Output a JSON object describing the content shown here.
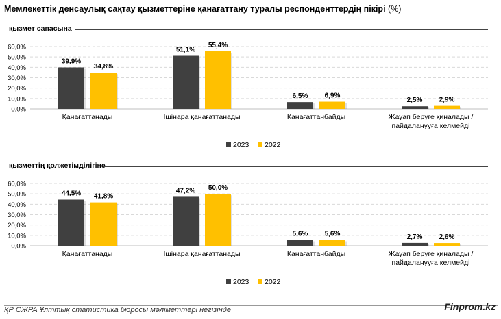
{
  "title": "Мемлекеттік денсаулық сақтау қызметтеріне қанағаттану туралы респонденттердің пікірі",
  "title_unit": "(%)",
  "footer": {
    "source": "ҚР СЖРА Ұлттық статистика бюросы мәліметтері негізінде",
    "brand": "Finprom.kz"
  },
  "colors": {
    "series_2023": "#404040",
    "series_2022": "#FFC000"
  },
  "chart_data": [
    {
      "type": "bar",
      "title": "қызмет сапасына",
      "categories": [
        "Қанағаттанады",
        "Ішінара қанағаттанады",
        "Қанағаттанбайды",
        "Жауап беруге қиналады / пайдаланууға келмейді"
      ],
      "category_lines": [
        [
          "Қанағаттанады"
        ],
        [
          "Ішінара қанағаттанады"
        ],
        [
          "Қанағаттанбайды"
        ],
        [
          "Жауап беруге қиналады /",
          "пайдаланууға келмейді"
        ]
      ],
      "series": [
        {
          "name": "2023",
          "values": [
            39.9,
            51.1,
            6.5,
            2.5
          ],
          "labels": [
            "39,9%",
            "51,1%",
            "6,5%",
            "2,5%"
          ]
        },
        {
          "name": "2022",
          "values": [
            34.8,
            55.4,
            6.9,
            2.9
          ],
          "labels": [
            "34,8%",
            "55,4%",
            "6,9%",
            "2,9%"
          ]
        }
      ],
      "ylim": [
        0,
        60
      ],
      "yticks": [
        "0,0%",
        "10,0%",
        "20,0%",
        "30,0%",
        "40,0%",
        "50,0%",
        "60,0%"
      ],
      "legend_position": "bottom-center"
    },
    {
      "type": "bar",
      "title": "қызметтің қолжетімділігіне",
      "categories": [
        "Қанағаттанады",
        "Ішінара қанағаттанады",
        "Қанағаттанбайды",
        "Жауап беруге қиналады / пайдаланууға келмейді"
      ],
      "category_lines": [
        [
          "Қанағаттанады"
        ],
        [
          "Ішінара қанағаттанады"
        ],
        [
          "Қанағаттанбайды"
        ],
        [
          "Жауап беруге қиналады /",
          "пайдаланууға келмейді"
        ]
      ],
      "series": [
        {
          "name": "2023",
          "values": [
            44.5,
            47.2,
            5.6,
            2.7
          ],
          "labels": [
            "44,5%",
            "47,2%",
            "5,6%",
            "2,7%"
          ]
        },
        {
          "name": "2022",
          "values": [
            41.8,
            50.0,
            5.6,
            2.6
          ],
          "labels": [
            "41,8%",
            "50,0%",
            "5,6%",
            "2,6%"
          ]
        }
      ],
      "ylim": [
        0,
        60
      ],
      "yticks": [
        "0,0%",
        "10,0%",
        "20,0%",
        "30,0%",
        "40,0%",
        "50,0%",
        "60,0%"
      ],
      "legend_position": "bottom-center"
    }
  ]
}
